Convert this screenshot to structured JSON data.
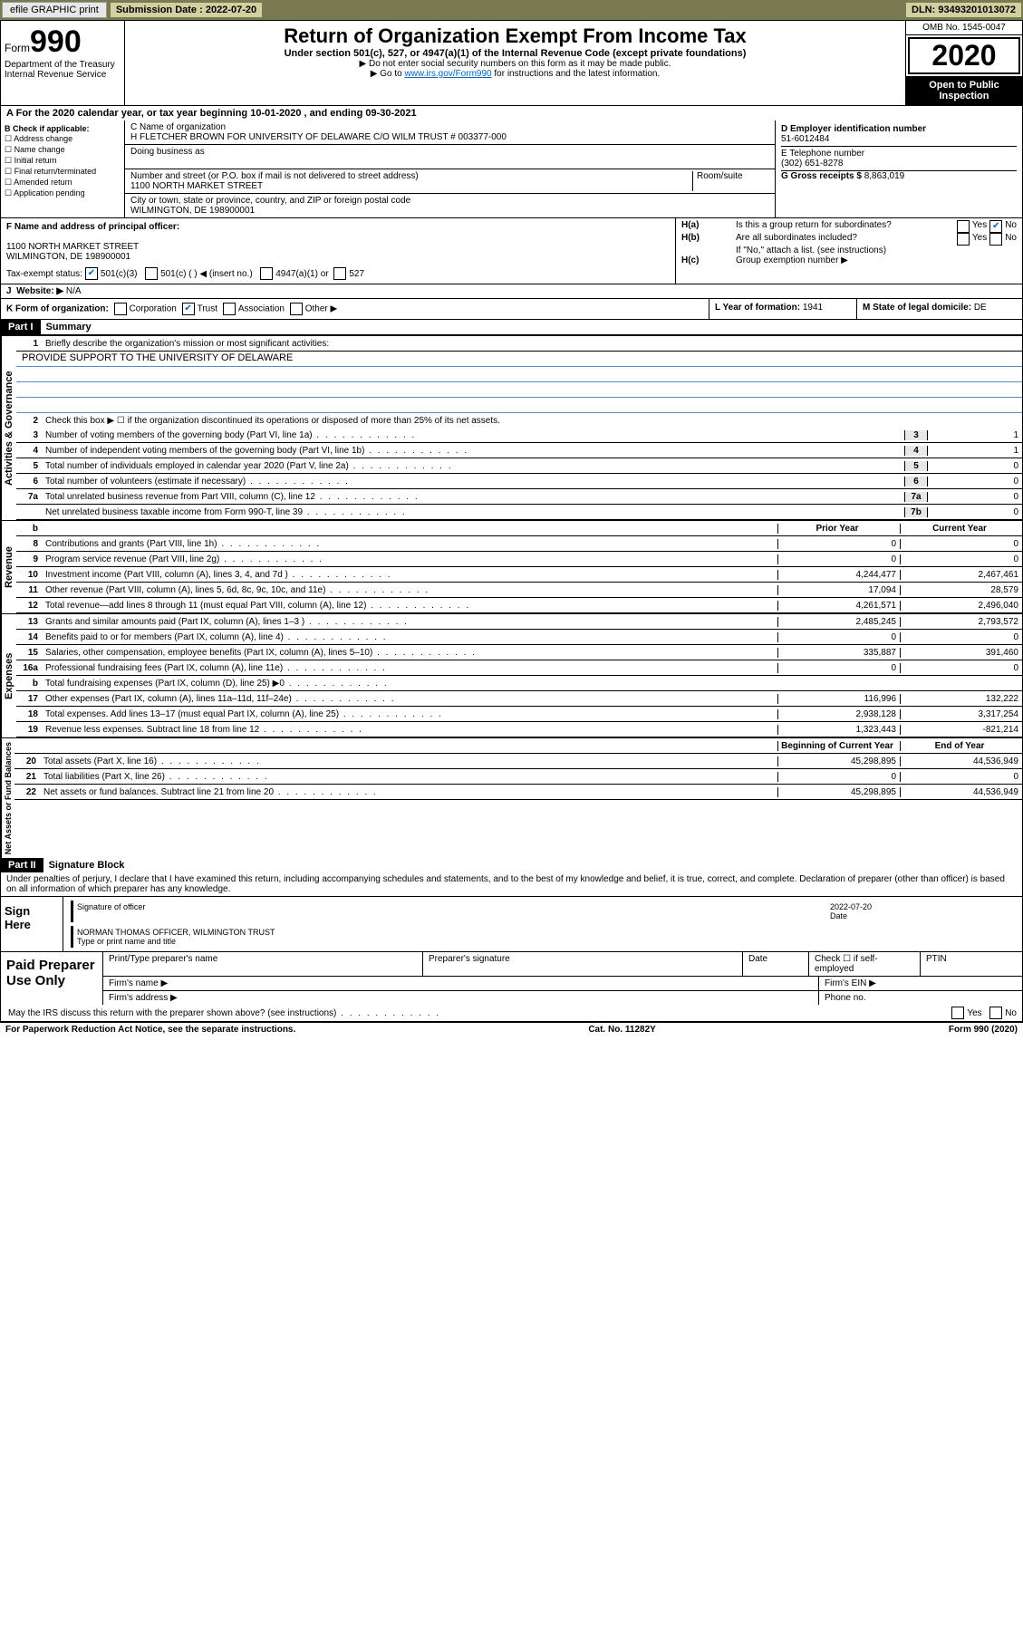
{
  "toolbar": {
    "efile": "efile GRAPHIC print",
    "subdate_lbl": "Submission Date : 2022-07-20",
    "dln": "DLN: 93493201013072"
  },
  "header": {
    "form_word": "Form",
    "form_no": "990",
    "dept": "Department of the Treasury",
    "irs": "Internal Revenue Service",
    "title": "Return of Organization Exempt From Income Tax",
    "sub": "Under section 501(c), 527, or 4947(a)(1) of the Internal Revenue Code (except private foundations)",
    "noSSN": "▶ Do not enter social security numbers on this form as it may be made public.",
    "goto_pre": "▶ Go to ",
    "goto_link": "www.irs.gov/Form990",
    "goto_post": " for instructions and the latest information.",
    "omb": "OMB No. 1545-0047",
    "year": "2020",
    "open": "Open to Public Inspection"
  },
  "A": {
    "text": "For the 2020 calendar year, or tax year beginning 10-01-2020   , and ending 09-30-2021"
  },
  "B": {
    "hdr": "B Check if applicable:",
    "items": [
      "Address change",
      "Name change",
      "Initial return",
      "Final return/terminated",
      "Amended return",
      "Application pending"
    ]
  },
  "C": {
    "name_lbl": "C Name of organization",
    "name": "H FLETCHER BROWN FOR UNIVERSITY OF DELAWARE C/O WILM TRUST # 003377-000",
    "dba_lbl": "Doing business as",
    "dba": "",
    "addr_lbl": "Number and street (or P.O. box if mail is not delivered to street address)",
    "room_lbl": "Room/suite",
    "addr": "1100 NORTH MARKET STREET",
    "city_lbl": "City or town, state or province, country, and ZIP or foreign postal code",
    "city": "WILMINGTON, DE  198900001"
  },
  "D": {
    "lbl": "D Employer identification number",
    "val": "51-6012484"
  },
  "E": {
    "lbl": "E Telephone number",
    "val": "(302) 651-8278"
  },
  "G": {
    "lbl": "G Gross receipts $ ",
    "val": "8,863,019"
  },
  "F": {
    "lbl": "F  Name and address of principal officer:",
    "addr1": "1100 NORTH MARKET STREET",
    "addr2": "WILMINGTON, DE  198900001"
  },
  "H": {
    "a_lbl": "Is this a group return for subordinates?",
    "a_yes": "Yes",
    "a_no": "No",
    "b_lbl": "Are all subordinates included?",
    "b_yes": "Yes",
    "b_no": "No",
    "b_note": "If \"No,\" attach a list. (see instructions)",
    "c_lbl": "Group exemption number ▶"
  },
  "tax": {
    "lbl": "Tax-exempt status:",
    "o1": "501(c)(3)",
    "o2": "501(c) (  ) ◀ (insert no.)",
    "o3": "4947(a)(1) or",
    "o4": "527"
  },
  "J": {
    "lbl": "Website: ▶",
    "val": "N/A"
  },
  "K": {
    "lbl": "K Form of organization:",
    "opts": [
      "Corporation",
      "Trust",
      "Association",
      "Other ▶"
    ]
  },
  "L": {
    "lbl": "L Year of formation: ",
    "val": "1941"
  },
  "M": {
    "lbl": "M State of legal domicile: ",
    "val": "DE"
  },
  "part1": {
    "hdr": "Part I",
    "title": "Summary"
  },
  "gov": {
    "label": "Activities & Governance",
    "l1": "Briefly describe the organization's mission or most significant activities:",
    "mission": "PROVIDE SUPPORT TO THE UNIVERSITY OF DELAWARE",
    "l2": "Check this box ▶ ☐  if the organization discontinued its operations or disposed of more than 25% of its net assets.",
    "rows": [
      {
        "n": "3",
        "t": "Number of voting members of the governing body (Part VI, line 1a)",
        "a": "3",
        "v": "1"
      },
      {
        "n": "4",
        "t": "Number of independent voting members of the governing body (Part VI, line 1b)",
        "a": "4",
        "v": "1"
      },
      {
        "n": "5",
        "t": "Total number of individuals employed in calendar year 2020 (Part V, line 2a)",
        "a": "5",
        "v": "0"
      },
      {
        "n": "6",
        "t": "Total number of volunteers (estimate if necessary)",
        "a": "6",
        "v": "0"
      },
      {
        "n": "7a",
        "t": "Total unrelated business revenue from Part VIII, column (C), line 12",
        "a": "7a",
        "v": "0"
      },
      {
        "n": "",
        "t": "Net unrelated business taxable income from Form 990-T, line 39",
        "a": "7b",
        "v": "0"
      }
    ]
  },
  "rev": {
    "label": "Revenue",
    "prior_hdr": "Prior Year",
    "curr_hdr": "Current Year",
    "rows": [
      {
        "n": "8",
        "t": "Contributions and grants (Part VIII, line 1h)",
        "p": "0",
        "c": "0"
      },
      {
        "n": "9",
        "t": "Program service revenue (Part VIII, line 2g)",
        "p": "0",
        "c": "0"
      },
      {
        "n": "10",
        "t": "Investment income (Part VIII, column (A), lines 3, 4, and 7d )",
        "p": "4,244,477",
        "c": "2,467,461"
      },
      {
        "n": "11",
        "t": "Other revenue (Part VIII, column (A), lines 5, 6d, 8c, 9c, 10c, and 11e)",
        "p": "17,094",
        "c": "28,579"
      },
      {
        "n": "12",
        "t": "Total revenue—add lines 8 through 11 (must equal Part VIII, column (A), line 12)",
        "p": "4,261,571",
        "c": "2,496,040"
      }
    ]
  },
  "exp": {
    "label": "Expenses",
    "rows": [
      {
        "n": "13",
        "t": "Grants and similar amounts paid (Part IX, column (A), lines 1–3 )",
        "p": "2,485,245",
        "c": "2,793,572"
      },
      {
        "n": "14",
        "t": "Benefits paid to or for members (Part IX, column (A), line 4)",
        "p": "0",
        "c": "0"
      },
      {
        "n": "15",
        "t": "Salaries, other compensation, employee benefits (Part IX, column (A), lines 5–10)",
        "p": "335,887",
        "c": "391,460"
      },
      {
        "n": "16a",
        "t": "Professional fundraising fees (Part IX, column (A), line 11e)",
        "p": "0",
        "c": "0"
      },
      {
        "n": "b",
        "t": "Total fundraising expenses (Part IX, column (D), line 25) ▶0",
        "p": "",
        "c": "",
        "shade": true
      },
      {
        "n": "17",
        "t": "Other expenses (Part IX, column (A), lines 11a–11d, 11f–24e)",
        "p": "116,996",
        "c": "132,222"
      },
      {
        "n": "18",
        "t": "Total expenses. Add lines 13–17 (must equal Part IX, column (A), line 25)",
        "p": "2,938,128",
        "c": "3,317,254"
      },
      {
        "n": "19",
        "t": "Revenue less expenses. Subtract line 18 from line 12",
        "p": "1,323,443",
        "c": "-821,214"
      }
    ]
  },
  "net": {
    "label": "Net Assets or Fund Balances",
    "beg_hdr": "Beginning of Current Year",
    "end_hdr": "End of Year",
    "rows": [
      {
        "n": "20",
        "t": "Total assets (Part X, line 16)",
        "p": "45,298,895",
        "c": "44,536,949"
      },
      {
        "n": "21",
        "t": "Total liabilities (Part X, line 26)",
        "p": "0",
        "c": "0"
      },
      {
        "n": "22",
        "t": "Net assets or fund balances. Subtract line 21 from line 20",
        "p": "45,298,895",
        "c": "44,536,949"
      }
    ]
  },
  "part2": {
    "hdr": "Part II",
    "title": "Signature Block",
    "decl": "Under penalties of perjury, I declare that I have examined this return, including accompanying schedules and statements, and to the best of my knowledge and belief, it is true, correct, and complete. Declaration of preparer (other than officer) is based on all information of which preparer has any knowledge."
  },
  "sign": {
    "here": "Sign Here",
    "sig_lbl": "Signature of officer",
    "date_lbl": "Date",
    "date": "2022-07-20",
    "name": "NORMAN THOMAS OFFICER, WILMINGTON TRUST",
    "name_lbl": "Type or print name and title"
  },
  "paid": {
    "lbl": "Paid Preparer Use Only",
    "c1": "Print/Type preparer's name",
    "c2": "Preparer's signature",
    "c3": "Date",
    "c4_pre": "Check ☐ if self-employed",
    "c5": "PTIN",
    "firm": "Firm's name  ▶",
    "ein": "Firm's EIN ▶",
    "addr": "Firm's address ▶",
    "phone": "Phone no."
  },
  "discuss": {
    "q": "May the IRS discuss this return with the preparer shown above? (see instructions)",
    "yes": "Yes",
    "no": "No"
  },
  "footer": {
    "pra": "For Paperwork Reduction Act Notice, see the separate instructions.",
    "cat": "Cat. No. 11282Y",
    "form": "Form 990 (2020)"
  }
}
